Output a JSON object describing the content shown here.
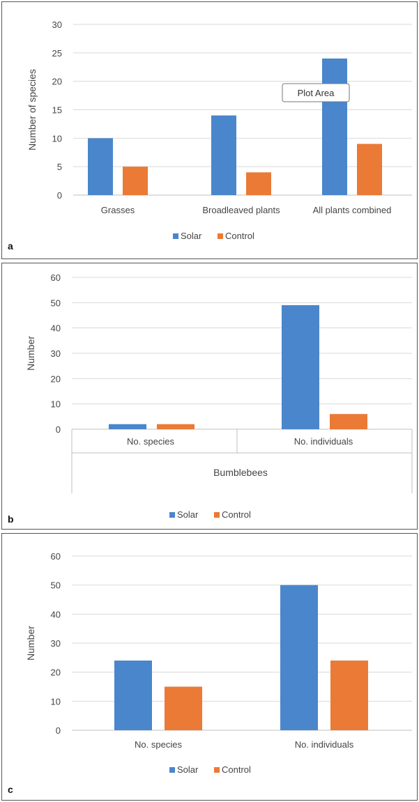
{
  "colors": {
    "solar": "#4a86cc",
    "control": "#ea7a35",
    "grid": "#d9d9d9",
    "axis": "#bfbfbf",
    "text": "#444444"
  },
  "chart_data": [
    {
      "type": "bar",
      "panel_label": "a",
      "categories": [
        "Grasses",
        "Broadleaved plants",
        "All plants combined"
      ],
      "series": [
        {
          "name": "Solar",
          "values": [
            10,
            14,
            24
          ]
        },
        {
          "name": "Control",
          "values": [
            5,
            4,
            9
          ]
        }
      ],
      "ylabel": "Number of species",
      "xlabel": "",
      "yticks": [
        "0",
        "5",
        "10",
        "15",
        "20",
        "25",
        "30"
      ],
      "ylim": [
        0,
        30
      ],
      "grid": true,
      "legend": "bottom",
      "annotation": "Plot Area"
    },
    {
      "type": "bar",
      "panel_label": "b",
      "categories": [
        "No. species",
        "No. individuals"
      ],
      "series": [
        {
          "name": "Solar",
          "values": [
            2,
            49
          ]
        },
        {
          "name": "Control",
          "values": [
            2,
            6
          ]
        }
      ],
      "ylabel": "Number",
      "xlabel": "Bumblebees",
      "yticks": [
        "0",
        "10",
        "20",
        "30",
        "40",
        "50",
        "60"
      ],
      "ylim": [
        0,
        60
      ],
      "grid": true,
      "legend": "bottom"
    },
    {
      "type": "bar",
      "panel_label": "c",
      "categories": [
        "No. species",
        "No. individuals"
      ],
      "series": [
        {
          "name": "Solar",
          "values": [
            24,
            50
          ]
        },
        {
          "name": "Control",
          "values": [
            15,
            24
          ]
        }
      ],
      "ylabel": "Number",
      "xlabel": "",
      "yticks": [
        "0",
        "10",
        "20",
        "30",
        "40",
        "50",
        "60"
      ],
      "ylim": [
        0,
        60
      ],
      "grid": true,
      "legend": "bottom"
    }
  ]
}
